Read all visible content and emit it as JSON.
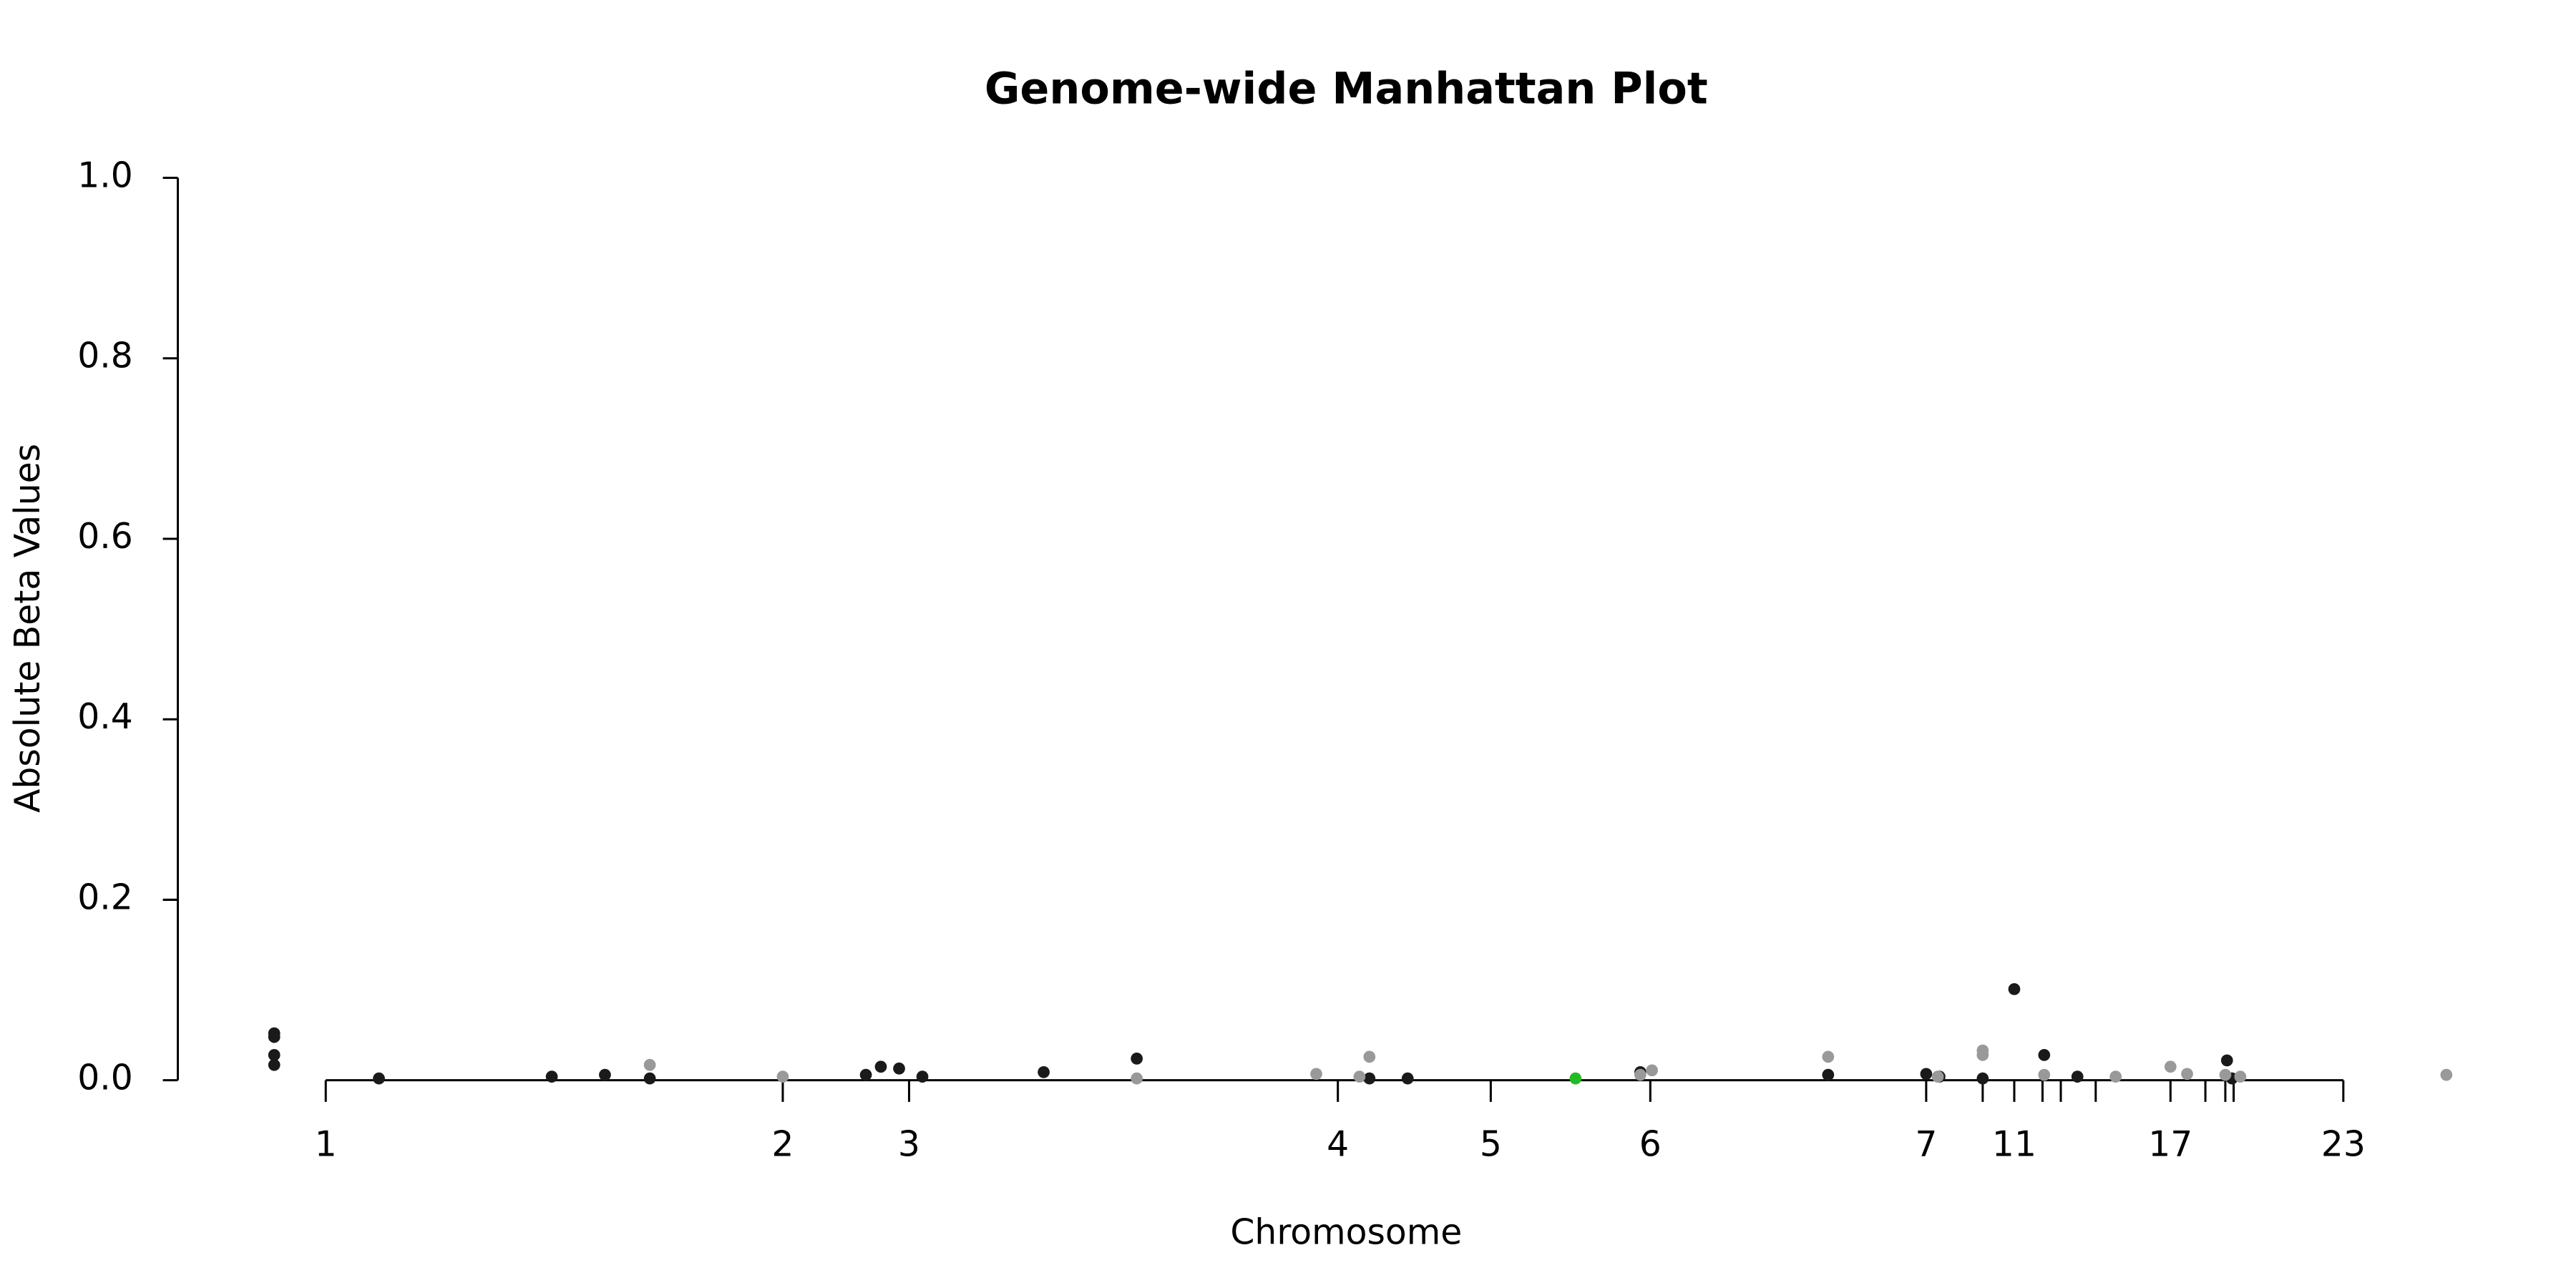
{
  "chart_data": {
    "type": "scatter",
    "title": "Genome-wide Manhattan Plot",
    "x_label": "Chromosome",
    "y_label": "Absolute Beta Values",
    "xlim": [
      107,
      1500
    ],
    "ylim": [
      0,
      1
    ],
    "yticks": [
      {
        "value": 0,
        "label": "0.0"
      },
      0.2,
      0.4,
      0.6,
      0.8,
      {
        "value": 1,
        "label": "1.0"
      }
    ],
    "xticks": [
      {
        "value": 196,
        "label": "1"
      },
      {
        "value": 471,
        "label": "2"
      },
      {
        "value": 547,
        "label": "3"
      },
      {
        "value": 805,
        "label": "4"
      },
      {
        "value": 897,
        "label": "5"
      },
      {
        "value": 993,
        "label": "6"
      },
      {
        "value": 1159,
        "label": "7"
      },
      {
        "value": 1193,
        "label": null
      },
      {
        "value": 1212,
        "label": "11"
      },
      {
        "value": 1229,
        "label": null
      },
      {
        "value": 1240,
        "label": null
      },
      {
        "value": 1261,
        "label": null
      },
      {
        "value": 1306,
        "label": "17"
      },
      {
        "value": 1327,
        "label": null
      },
      {
        "value": 1339,
        "label": null
      },
      {
        "value": 1344,
        "label": null
      },
      {
        "value": 1410,
        "label": "23"
      }
    ],
    "series": [
      {
        "color": "#1a1a1a",
        "x": [
          165,
          165,
          165,
          165,
          228,
          332,
          364,
          391,
          521,
          530,
          541,
          555,
          628,
          684,
          824,
          847,
          987,
          1100,
          1159,
          1167,
          1193,
          1212,
          1230,
          1250,
          1340,
          1343
        ],
        "values": [
          0.052,
          0.048,
          0.028,
          0.017,
          0.002,
          0.004,
          0.006,
          0.002,
          0.006,
          0.015,
          0.013,
          0.004,
          0.009,
          0.024,
          0.002,
          0.002,
          0.009,
          0.006,
          0.007,
          0.004,
          0.002,
          0.101,
          0.028,
          0.004,
          0.022,
          0.002
        ]
      },
      {
        "color": "#999999",
        "x": [
          391,
          471,
          684,
          792,
          818,
          824,
          987,
          994,
          1100,
          1166,
          1193,
          1193,
          1230,
          1273,
          1306,
          1316,
          1339,
          1348,
          1472
        ],
        "values": [
          0.017,
          0.004,
          0.002,
          0.007,
          0.004,
          0.026,
          0.006,
          0.011,
          0.026,
          0.004,
          0.033,
          0.028,
          0.006,
          0.004,
          0.015,
          0.007,
          0.006,
          0.004,
          0.006
        ]
      },
      {
        "color": "#22bb22",
        "x": [
          948
        ],
        "values": [
          0.002
        ]
      }
    ]
  }
}
